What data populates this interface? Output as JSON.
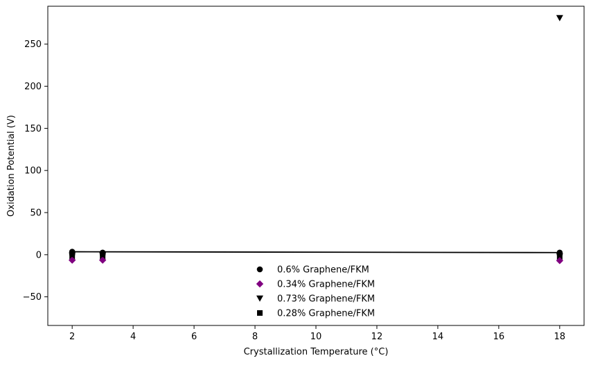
{
  "chart_data": {
    "type": "scatter",
    "title": "",
    "xlabel": "Crystallization Temperature (°C)",
    "ylabel": "Oxidation Potential (V)",
    "xlim": [
      1.2,
      18.8
    ],
    "ylim": [
      -84,
      295
    ],
    "xticks": [
      2,
      4,
      6,
      8,
      10,
      12,
      14,
      16,
      18
    ],
    "yticks": [
      -50,
      0,
      50,
      100,
      150,
      200,
      250
    ],
    "x_tick_labels": [
      "2",
      "4",
      "6",
      "8",
      "10",
      "12",
      "14",
      "16",
      "18"
    ],
    "y_tick_labels": [
      "−50",
      "0",
      "50",
      "100",
      "150",
      "200",
      "250"
    ],
    "grid": false,
    "legend_position": "lower-center",
    "series": [
      {
        "name": "0.6% Graphene/FKM",
        "marker": "circle",
        "color": "#000000",
        "points": [
          {
            "x": 2,
            "y": 3.5
          },
          {
            "x": 2,
            "y": 2.5
          },
          {
            "x": 2,
            "y": 1.5
          },
          {
            "x": 2,
            "y": 0.5
          },
          {
            "x": 3,
            "y": 2.5
          },
          {
            "x": 3,
            "y": 1.5
          },
          {
            "x": 3,
            "y": 0.5
          },
          {
            "x": 18,
            "y": 2.5
          },
          {
            "x": 18,
            "y": 1.5
          },
          {
            "x": 18,
            "y": 0.5
          }
        ]
      },
      {
        "name": "0.34% Graphene/FKM",
        "marker": "diamond",
        "color": "#800080",
        "points": [
          {
            "x": 2,
            "y": -6.5
          },
          {
            "x": 3,
            "y": -6.5
          },
          {
            "x": 18,
            "y": -7
          }
        ]
      },
      {
        "name": "0.73% Graphene/FKM",
        "marker": "triangle-down",
        "color": "#000000",
        "points": [
          {
            "x": 18,
            "y": 281
          },
          {
            "x": 2,
            "y": -1
          },
          {
            "x": 3,
            "y": -1
          },
          {
            "x": 18,
            "y": -2
          }
        ]
      },
      {
        "name": "0.28% Graphene/FKM",
        "marker": "square",
        "color": "#000000",
        "points": [
          {
            "x": 2,
            "y": -3
          },
          {
            "x": 3,
            "y": -3
          },
          {
            "x": 18,
            "y": -3.5
          }
        ]
      }
    ],
    "trend_line": {
      "color": "#000000",
      "points": [
        {
          "x": 2,
          "y": 3.5
        },
        {
          "x": 18,
          "y": 2.5
        }
      ]
    }
  }
}
